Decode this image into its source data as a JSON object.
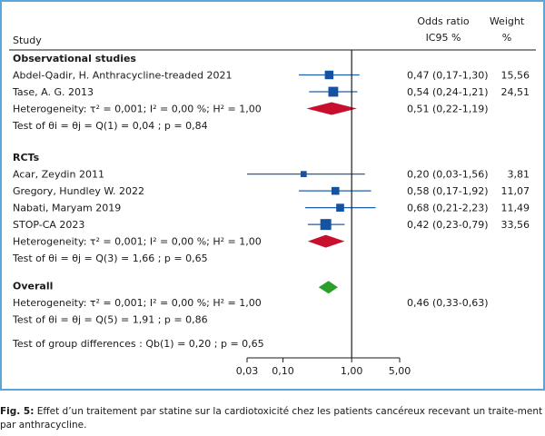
{
  "header": {
    "study": "Study",
    "or_line1": "Odds ratio",
    "or_line2": "IC95 %",
    "weight_line1": "Weight",
    "weight_line2": "%"
  },
  "caption": {
    "label": "Fig. 5:",
    "text": " Effet d’un traitement par statine sur la cardiotoxicité chez les patients cancéreux recevant un traite-ment par anthracycline."
  },
  "chart_data": {
    "type": "forest",
    "scale": "log",
    "xlim": [
      0.03,
      5.0
    ],
    "x_ticks": [
      {
        "value": 0.03,
        "label": "0,03"
      },
      {
        "value": 0.1,
        "label": "0,10"
      },
      {
        "value": 1.0,
        "label": "1,00"
      },
      {
        "value": 5.0,
        "label": "5,00"
      }
    ],
    "reference_line": 1.0,
    "groups": [
      {
        "name": "Observational studies",
        "studies": [
          {
            "label": "Abdel-Qadir, H. Anthracycline-treaded 2021",
            "or": 0.47,
            "lo": 0.17,
            "hi": 1.3,
            "or_text": "0,47 (0,17-1,30)",
            "weight": 15.56,
            "weight_text": "15,56"
          },
          {
            "label": "Tase, A. G. 2013",
            "or": 0.54,
            "lo": 0.24,
            "hi": 1.21,
            "or_text": "0,54 (0,24-1,21)",
            "weight": 24.51,
            "weight_text": "24,51"
          }
        ],
        "heterogeneity": "Heterogeneity: τ² = 0,001; I² = 0,00 %; H² = 1,00",
        "pooled": {
          "or": 0.51,
          "lo": 0.22,
          "hi": 1.19,
          "or_text": "0,51 (0,22-1,19)",
          "color": "#c8102e"
        },
        "test": "Test of θi = θj = Q(1) = 0,04 ; p = 0,84"
      },
      {
        "name": "RCTs",
        "studies": [
          {
            "label": "Acar, Zeydin 2011",
            "or": 0.2,
            "lo": 0.03,
            "hi": 1.56,
            "or_text": "0,20 (0,03-1,56)",
            "weight": 3.81,
            "weight_text": "3,81"
          },
          {
            "label": "Gregory, Hundley W. 2022",
            "or": 0.58,
            "lo": 0.17,
            "hi": 1.92,
            "or_text": "0,58 (0,17-1,92)",
            "weight": 11.07,
            "weight_text": "11,07"
          },
          {
            "label": "Nabati, Maryam 2019",
            "or": 0.68,
            "lo": 0.21,
            "hi": 2.23,
            "or_text": "0,68 (0,21-2,23)",
            "weight": 11.49,
            "weight_text": "11,49"
          },
          {
            "label": "STOP-CA 2023",
            "or": 0.42,
            "lo": 0.23,
            "hi": 0.79,
            "or_text": "0,42 (0,23-0,79)",
            "weight": 33.56,
            "weight_text": "33,56"
          }
        ],
        "heterogeneity": "Heterogeneity: τ² = 0,001; I² = 0,00 %; H² = 1,00",
        "pooled": {
          "or": 0.42,
          "lo": 0.23,
          "hi": 0.79,
          "color": "#c8102e"
        },
        "test": "Test of θi = θj = Q(3) = 1,66 ; p = 0,65"
      }
    ],
    "overall": {
      "name": "Overall",
      "heterogeneity": "Heterogeneity: τ² = 0,001; I² = 0,00 %; H² = 1,00",
      "pooled": {
        "or": 0.46,
        "lo": 0.33,
        "hi": 0.63,
        "or_text": "0,46 (0,33-0,63)",
        "color": "#2aa02a"
      },
      "test": "Test of θi = θj = Q(5) = 1,91 ; p = 0,86"
    },
    "group_difference_test": "Test of group differences : Qb(1) = 0,20 ; p = 0,65"
  }
}
